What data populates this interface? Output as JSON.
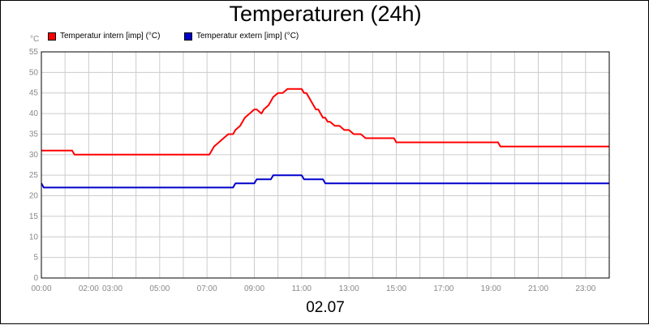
{
  "chart_data": {
    "type": "line",
    "title": "Temperaturen (24h)",
    "y_unit": "°C",
    "xlabel": "02.07",
    "ylim": [
      0,
      55
    ],
    "yticks": [
      0,
      5,
      10,
      15,
      20,
      25,
      30,
      35,
      40,
      45,
      50,
      55
    ],
    "xlim": [
      0,
      24
    ],
    "grid": true,
    "legend_placement": "top-left",
    "xtick_labels": [
      {
        "t": 0,
        "label": "00:00"
      },
      {
        "t": 2,
        "label": "02:00"
      },
      {
        "t": 3,
        "label": "03:00"
      },
      {
        "t": 5,
        "label": "05:00"
      },
      {
        "t": 7,
        "label": "07:00"
      },
      {
        "t": 9,
        "label": "09:00"
      },
      {
        "t": 11,
        "label": "11:00"
      },
      {
        "t": 13,
        "label": "13:00"
      },
      {
        "t": 15,
        "label": "15:00"
      },
      {
        "t": 17,
        "label": "17:00"
      },
      {
        "t": 19,
        "label": "19:00"
      },
      {
        "t": 21,
        "label": "21:00"
      },
      {
        "t": 23,
        "label": "23:00"
      }
    ],
    "series": [
      {
        "name": "Temperatur intern [imp] (°C)",
        "color": "#ff0000",
        "x": [
          0,
          1.3,
          1.4,
          7.1,
          7.3,
          7.5,
          7.7,
          7.9,
          8.1,
          8.2,
          8.4,
          8.5,
          8.6,
          8.8,
          9.0,
          9.1,
          9.3,
          9.4,
          9.6,
          9.7,
          9.8,
          10.0,
          10.2,
          10.4,
          10.5,
          10.7,
          10.9,
          11.0,
          11.1,
          11.2,
          11.3,
          11.4,
          11.5,
          11.6,
          11.7,
          11.8,
          11.9,
          12.0,
          12.1,
          12.2,
          12.4,
          12.6,
          12.8,
          13.0,
          13.2,
          13.5,
          13.7,
          14.0,
          14.9,
          15.0,
          19.3,
          19.4,
          24.0
        ],
        "values": [
          31,
          31,
          30,
          30,
          32,
          33,
          34,
          35,
          35,
          36,
          37,
          38,
          39,
          40,
          41,
          41,
          40,
          41,
          42,
          43,
          44,
          45,
          45,
          46,
          46,
          46,
          46,
          46,
          45,
          45,
          44,
          43,
          42,
          41,
          41,
          40,
          39,
          39,
          38,
          38,
          37,
          37,
          36,
          36,
          35,
          35,
          34,
          34,
          34,
          33,
          33,
          32,
          32
        ]
      },
      {
        "name": "Temperatur extern [imp] (°C)",
        "color": "#0000cc",
        "x": [
          0,
          0.1,
          8.1,
          8.2,
          9.0,
          9.1,
          9.7,
          9.8,
          11.0,
          11.1,
          11.9,
          12.0,
          24.0
        ],
        "values": [
          23,
          22,
          22,
          23,
          23,
          24,
          24,
          25,
          25,
          24,
          24,
          23,
          23
        ]
      }
    ]
  }
}
